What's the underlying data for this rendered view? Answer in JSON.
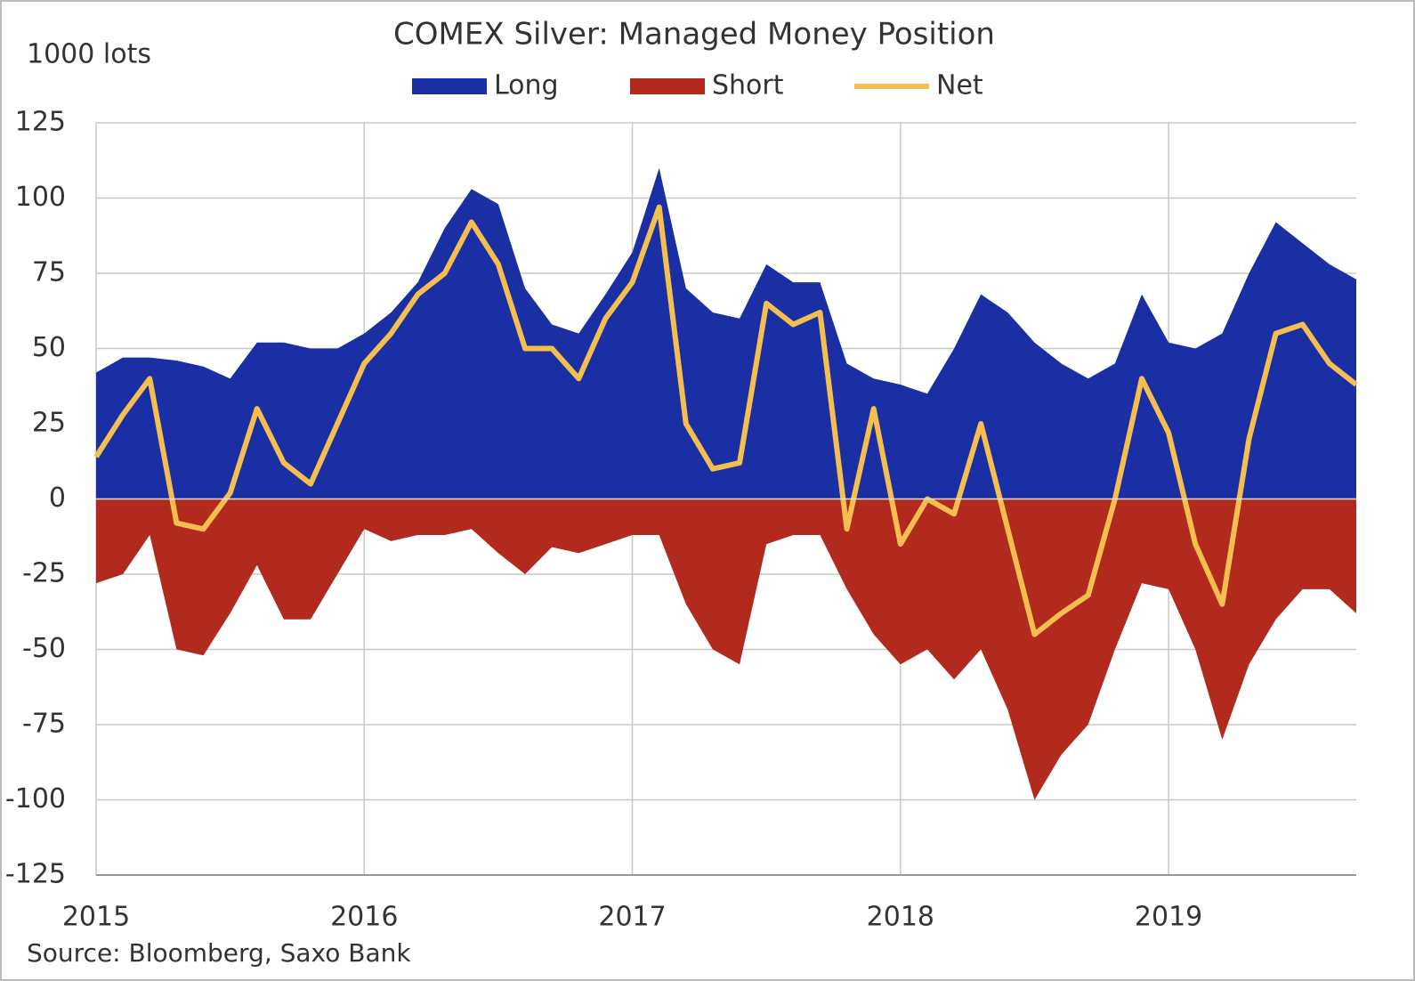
{
  "chart_data": {
    "type": "area",
    "title": "COMEX Silver: Managed Money Position",
    "y_label": "1000 lots",
    "source": "Source: Bloomberg, Saxo Bank",
    "x": [
      2015.0,
      2015.1,
      2015.2,
      2015.3,
      2015.4,
      2015.5,
      2015.6,
      2015.7,
      2015.8,
      2015.9,
      2016.0,
      2016.1,
      2016.2,
      2016.3,
      2016.4,
      2016.5,
      2016.6,
      2016.7,
      2016.8,
      2016.9,
      2017.0,
      2017.1,
      2017.2,
      2017.3,
      2017.4,
      2017.5,
      2017.6,
      2017.7,
      2017.8,
      2017.9,
      2018.0,
      2018.1,
      2018.2,
      2018.3,
      2018.4,
      2018.5,
      2018.6,
      2018.7,
      2018.8,
      2018.9,
      2019.0,
      2019.1,
      2019.2,
      2019.3,
      2019.4,
      2019.5,
      2019.6,
      2019.7
    ],
    "series": [
      {
        "name": "Long",
        "color": "#1a2fa3",
        "style": "area",
        "values": [
          42,
          47,
          47,
          46,
          44,
          40,
          52,
          52,
          50,
          50,
          55,
          62,
          72,
          90,
          103,
          98,
          70,
          58,
          55,
          68,
          82,
          110,
          70,
          62,
          60,
          78,
          72,
          72,
          45,
          40,
          38,
          35,
          50,
          68,
          62,
          52,
          45,
          40,
          45,
          68,
          52,
          50,
          55,
          75,
          92,
          85,
          78,
          73
        ]
      },
      {
        "name": "Short",
        "color": "#b22a1d",
        "style": "area",
        "values": [
          -28,
          -25,
          -12,
          -50,
          -52,
          -38,
          -22,
          -40,
          -40,
          -25,
          -10,
          -14,
          -12,
          -12,
          -10,
          -18,
          -25,
          -16,
          -18,
          -15,
          -12,
          -12,
          -35,
          -50,
          -55,
          -15,
          -12,
          -12,
          -30,
          -45,
          -55,
          -50,
          -60,
          -50,
          -70,
          -100,
          -85,
          -75,
          -50,
          -28,
          -30,
          -50,
          -80,
          -55,
          -40,
          -30,
          -30,
          -38
        ]
      },
      {
        "name": "Net",
        "color": "#f5bf4f",
        "style": "line",
        "values": [
          14,
          28,
          40,
          -8,
          -10,
          2,
          30,
          12,
          5,
          25,
          45,
          55,
          68,
          75,
          92,
          78,
          50,
          50,
          40,
          60,
          72,
          97,
          25,
          10,
          12,
          65,
          58,
          62,
          -10,
          30,
          -15,
          0,
          -5,
          25,
          -10,
          -45,
          -38,
          -32,
          0,
          40,
          22,
          -15,
          -35,
          20,
          55,
          58,
          45,
          38
        ]
      }
    ],
    "xlim": [
      2015,
      2019.7
    ],
    "xticks": [
      2015,
      2016,
      2017,
      2018,
      2019
    ],
    "ylim": [
      -125,
      125
    ],
    "yticks": [
      -125,
      -100,
      -75,
      -50,
      -25,
      0,
      25,
      50,
      75,
      100,
      125
    ],
    "grid": true
  }
}
